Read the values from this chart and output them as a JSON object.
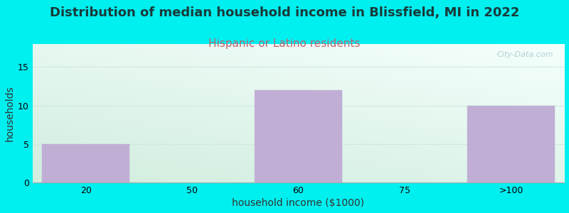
{
  "title": "Distribution of median household income in Blissfield, MI in 2022",
  "subtitle": "Hispanic or Latino residents",
  "xlabel": "household income ($1000)",
  "ylabel": "households",
  "bg_outer": "#00EFEF",
  "bg_inner_left": "#d4ede0",
  "bg_inner_right": "#f0fafa",
  "bg_inner_top": "#f8ffff",
  "bg_inner_bottom": "#cce8dc",
  "bar_color": "#c0aed4",
  "bar_edgecolor": "#c0aed4",
  "categories": [
    "20",
    "50",
    "60",
    "75",
    ">100"
  ],
  "values": [
    5,
    0,
    12,
    0,
    10
  ],
  "bar_positions": [
    0,
    1,
    2,
    3,
    4
  ],
  "ylim": [
    0,
    18
  ],
  "yticks": [
    0,
    5,
    10,
    15
  ],
  "title_fontsize": 13,
  "title_color": "#1a3a3a",
  "subtitle_fontsize": 11,
  "subtitle_color": "#c06070",
  "axis_label_fontsize": 10,
  "tick_fontsize": 9,
  "watermark": "City-Data.com",
  "watermark_color": "#aac8cc",
  "grid_color": "#d0e8e0",
  "spine_color": "#aaaaaa"
}
